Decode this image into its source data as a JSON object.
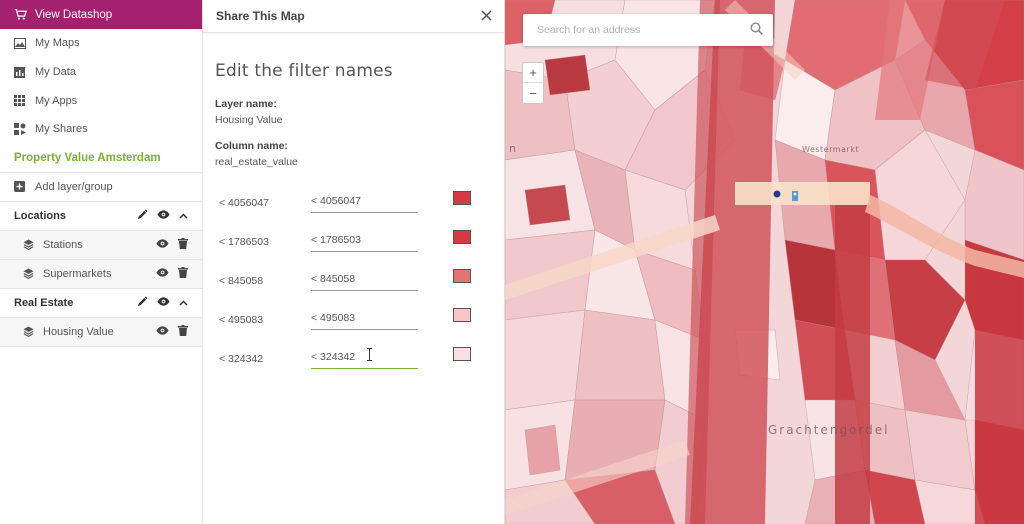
{
  "sidebar": {
    "datashop_label": "View Datashop",
    "nav": [
      {
        "label": "My Maps",
        "icon": "image-icon"
      },
      {
        "label": "My Data",
        "icon": "chart-icon"
      },
      {
        "label": "My Apps",
        "icon": "grid-icon"
      },
      {
        "label": "My Shares",
        "icon": "shares-icon"
      }
    ],
    "project_title": "Property Value Amsterdam",
    "add_layer_label": "Add layer/group",
    "groups": [
      {
        "name": "Locations",
        "layers": [
          "Stations",
          "Supermarkets"
        ]
      },
      {
        "name": "Real Estate",
        "layers": [
          "Housing Value"
        ]
      }
    ]
  },
  "panel": {
    "title": "Share This Map",
    "edit_title": "Edit the filter names",
    "layer_name_label": "Layer name:",
    "layer_name_value": "Housing Value",
    "column_name_label": "Column name:",
    "column_name_value": "real_estate_value",
    "filters": [
      {
        "original": "< 4056047",
        "value": "< 4056047",
        "color": "#d63b45"
      },
      {
        "original": "< 1786503",
        "value": "< 1786503",
        "color": "#d53a3f"
      },
      {
        "original": "< 845058",
        "value": "< 845058",
        "color": "#e57373"
      },
      {
        "original": "< 495083",
        "value": "< 495083",
        "color": "#f7c4c8"
      },
      {
        "original": "< 324342",
        "value": "< 324342",
        "color": "#fbe0e3"
      }
    ]
  },
  "map": {
    "search_placeholder": "Search for an address",
    "zoom_in": "+",
    "zoom_out": "−",
    "labels": [
      "Westermarkt",
      "Grachtengordel",
      "n"
    ]
  },
  "colors": {
    "accent": "#a3216f",
    "green": "#7ab32e"
  }
}
